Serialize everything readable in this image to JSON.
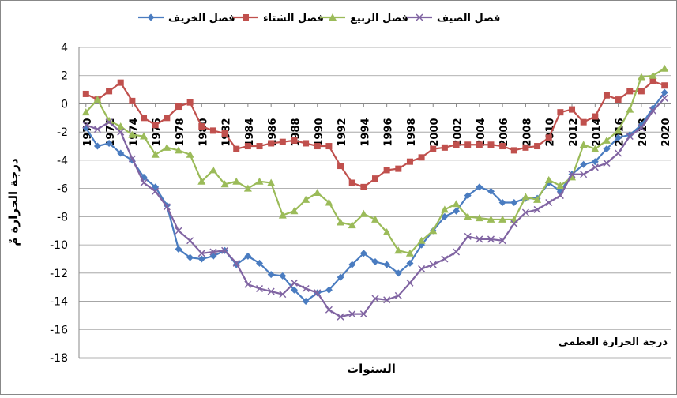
{
  "chart_data": {
    "type": "line",
    "ylabel": "درجة الحرارة مْ",
    "xlabel": "السنوات",
    "annotation": "درجة الحرارة العظمى",
    "x": [
      1970,
      1971,
      1972,
      1973,
      1974,
      1975,
      1976,
      1977,
      1978,
      1979,
      1980,
      1981,
      1982,
      1983,
      1984,
      1985,
      1986,
      1987,
      1988,
      1989,
      1990,
      1991,
      1992,
      1993,
      1994,
      1995,
      1996,
      1997,
      1998,
      1999,
      2000,
      2001,
      2002,
      2003,
      2004,
      2005,
      2006,
      2007,
      2008,
      2009,
      2010,
      2011,
      2012,
      2013,
      2014,
      2015,
      2016,
      2017,
      2018,
      2019,
      2020
    ],
    "xlim": [
      1969.4,
      2020.6
    ],
    "xticks": [
      1970,
      1972,
      1974,
      1976,
      1978,
      1980,
      1982,
      1984,
      1986,
      1988,
      1990,
      1992,
      1994,
      1996,
      1998,
      2000,
      2002,
      2004,
      2006,
      2008,
      2010,
      2012,
      2014,
      2016,
      2018,
      2020
    ],
    "ylim": [
      -18,
      4
    ],
    "yticks": [
      -18,
      -16,
      -14,
      -12,
      -10,
      -8,
      -6,
      -4,
      -2,
      0,
      2,
      4
    ],
    "grid": true,
    "series": [
      {
        "name": "فصل الخريف",
        "color": "#4a7cc0",
        "marker": "diamond",
        "values": [
          -1.7,
          -3.0,
          -2.8,
          -3.5,
          -4.0,
          -5.2,
          -5.9,
          -7.2,
          -10.3,
          -10.9,
          -11.0,
          -10.8,
          -10.4,
          -11.4,
          -10.8,
          -11.3,
          -12.1,
          -12.2,
          -13.2,
          -14.0,
          -13.4,
          -13.2,
          -12.3,
          -11.4,
          -10.6,
          -11.2,
          -11.4,
          -12.0,
          -11.3,
          -10.0,
          -9.0,
          -8.0,
          -7.6,
          -6.5,
          -5.9,
          -6.2,
          -7.0,
          -7.0,
          -6.7,
          -6.7,
          -5.6,
          -6.2,
          -5.0,
          -4.3,
          -4.1,
          -3.2,
          -2.4,
          -2.2,
          -1.5,
          -0.3,
          0.8
        ]
      },
      {
        "name": "فصل الشتاء",
        "color": "#c0504d",
        "marker": "square",
        "values": [
          0.7,
          0.3,
          0.9,
          1.5,
          0.2,
          -1.0,
          -1.5,
          -1.0,
          -0.2,
          0.1,
          -1.6,
          -1.9,
          -2.1,
          -3.2,
          -3.0,
          -3.0,
          -2.8,
          -2.7,
          -2.6,
          -2.8,
          -3.0,
          -3.0,
          -4.4,
          -5.6,
          -5.9,
          -5.3,
          -4.7,
          -4.6,
          -4.1,
          -3.8,
          -3.2,
          -3.1,
          -2.9,
          -2.9,
          -2.9,
          -2.9,
          -3.0,
          -3.3,
          -3.1,
          -3.0,
          -2.4,
          -0.6,
          -0.4,
          -1.3,
          -0.9,
          0.6,
          0.3,
          0.9,
          0.9,
          1.6,
          1.3
        ]
      },
      {
        "name": "فصل الربيع",
        "color": "#9bbb59",
        "marker": "triangle",
        "values": [
          -0.6,
          0.3,
          -1.2,
          -1.6,
          -2.2,
          -2.3,
          -3.6,
          -3.1,
          -3.3,
          -3.6,
          -5.5,
          -4.7,
          -5.7,
          -5.5,
          -6.0,
          -5.5,
          -5.6,
          -7.9,
          -7.6,
          -6.8,
          -6.3,
          -7.0,
          -8.4,
          -8.6,
          -7.8,
          -8.2,
          -9.1,
          -10.4,
          -10.6,
          -9.7,
          -9.0,
          -7.5,
          -7.1,
          -8.0,
          -8.1,
          -8.2,
          -8.2,
          -8.2,
          -6.6,
          -6.8,
          -5.4,
          -5.8,
          -5.2,
          -2.9,
          -3.2,
          -2.6,
          -1.9,
          -0.4,
          1.9,
          2.0,
          2.5
        ]
      },
      {
        "name": "فصل الصيف",
        "color": "#8064a2",
        "marker": "x",
        "values": [
          -1.5,
          -1.8,
          -1.3,
          -2.0,
          -3.9,
          -5.6,
          -6.2,
          -7.3,
          -9.0,
          -9.7,
          -10.6,
          -10.5,
          -10.4,
          -11.3,
          -12.8,
          -13.1,
          -13.3,
          -13.5,
          -12.7,
          -13.1,
          -13.4,
          -14.6,
          -15.1,
          -14.9,
          -14.9,
          -13.8,
          -13.9,
          -13.6,
          -12.7,
          -11.7,
          -11.4,
          -11.0,
          -10.5,
          -9.4,
          -9.6,
          -9.6,
          -9.7,
          -8.5,
          -7.7,
          -7.5,
          -7.0,
          -6.5,
          -5.0,
          -5.0,
          -4.5,
          -4.2,
          -3.5,
          -2.3,
          -1.7,
          -0.5,
          0.4
        ]
      }
    ]
  }
}
